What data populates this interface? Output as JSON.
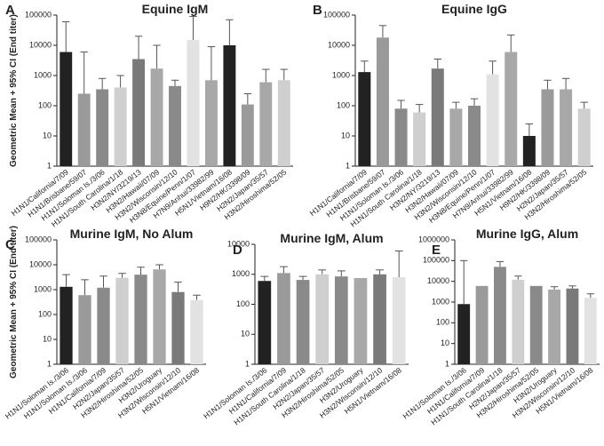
{
  "chart_data": [
    {
      "type": "bar",
      "panel": "A",
      "title": "Equine IgM",
      "ylabel": "Geometric Mean + 95% CI (End titer)",
      "log_scale": true,
      "categories": [
        "H1N1/California/7/09",
        "H1N1/Brisbane/59/07",
        "H1N1/Soloman Is./3/06",
        "H1N1/South Carolina/1/18",
        "H3N2/NY/3219/13",
        "H3N2/Hawaii/07/09",
        "H3N2/Wisconsin/12/10",
        "H3N8/Equine/Penn/1/07",
        "H7N9/Anhui/33982/99",
        "H5N1/Vietnam/16/08",
        "H9N2/HK/3398/09",
        "H2N2/Japan/35/57",
        "H3N2/Hiroshima/52/05"
      ],
      "values": [
        6000,
        250,
        350,
        400,
        3500,
        1700,
        450,
        15000,
        700,
        10000,
        110,
        600,
        700
      ],
      "upper": [
        60000,
        6000,
        800,
        1000,
        20000,
        10000,
        700,
        90000,
        9000,
        70000,
        250,
        1600,
        1600
      ],
      "colors": [
        "#222222",
        "#9a9a9a",
        "#8a8a8a",
        "#cfcfcf",
        "#7a7a7a",
        "#a8a8a8",
        "#8a8a8a",
        "#e2e2e2",
        "#a8a8a8",
        "#222222",
        "#9a9a9a",
        "#a8a8a8",
        "#cfcfcf"
      ],
      "ylim": [
        1,
        100000
      ],
      "yticks": [
        1,
        10,
        100,
        1000,
        10000,
        100000
      ]
    },
    {
      "type": "bar",
      "panel": "B",
      "title": "Equine IgG",
      "log_scale": true,
      "categories": [
        "H1N1/California/7/09",
        "H1N1/Brisbane/59/07",
        "H1N1/Soloman Is./3/06",
        "H1N1/South Carolina/1/18",
        "H3N2/NY/3219/13",
        "H3N2/Hawaii/07/09",
        "H3N2/Wisconsin/12/10",
        "H3N8/Equine/Penn/1/07",
        "H7N9/Anhui/33982/99",
        "H5N1/Vietnam/16/08",
        "H9N2/HK/3398/09",
        "H2N2/Japan/35/57",
        "H3N2/Hiroshima/52/05"
      ],
      "values": [
        1300,
        18000,
        80,
        60,
        1700,
        80,
        100,
        1100,
        6000,
        10,
        350,
        350,
        80
      ],
      "upper": [
        3000,
        45000,
        150,
        110,
        3500,
        130,
        170,
        3000,
        22000,
        25,
        700,
        800,
        130
      ],
      "colors": [
        "#222222",
        "#9a9a9a",
        "#8a8a8a",
        "#cfcfcf",
        "#7a7a7a",
        "#a8a8a8",
        "#8a8a8a",
        "#e2e2e2",
        "#a8a8a8",
        "#222222",
        "#9a9a9a",
        "#a8a8a8",
        "#cfcfcf"
      ],
      "ylim": [
        1,
        100000
      ],
      "yticks": [
        1,
        10,
        100,
        1000,
        10000,
        100000
      ]
    },
    {
      "type": "bar",
      "panel": "C",
      "title": "Murine IgM, No Alum",
      "ylabel": "Geometric Mean + 95% CI (End titer)",
      "log_scale": true,
      "categories": [
        "H1N1/Soloman Is./3/06",
        "H1N1/Soloman Is./3/06",
        "H1N1/California/7/09",
        "H2N2/Japan/35/57",
        "H3N2/Hiroshima/52/05",
        "H3N2/Uroguary",
        "H3N2/Wisconsin/12/10",
        "H5N1/Vietnam/16/08"
      ],
      "values": [
        1300,
        600,
        1200,
        3000,
        4000,
        6500,
        800,
        380
      ],
      "upper": [
        4000,
        2500,
        3500,
        4500,
        8000,
        10000,
        2000,
        600
      ],
      "colors": [
        "#222222",
        "#9a9a9a",
        "#8a8a8a",
        "#cfcfcf",
        "#8a8a8a",
        "#a8a8a8",
        "#7a7a7a",
        "#e2e2e2"
      ],
      "ylim": [
        1,
        100000
      ],
      "yticks": [
        1,
        10,
        100,
        1000,
        10000,
        100000
      ]
    },
    {
      "type": "bar",
      "panel": "D",
      "title": "Murine IgM, Alum",
      "log_scale": true,
      "categories": [
        "H1N1/Soloman Is./3/06",
        "H1N1/California/7/09",
        "H1N1/South Carolina/1/18",
        "H2N2/Japan/35/57",
        "H3N2/Hiroshima/52/05",
        "H3N2/Uroguary",
        "H3N2/Wisconsin/12/10",
        "H5N1/Vietnam/16/08"
      ],
      "values": [
        600,
        1100,
        650,
        1000,
        850,
        750,
        1000,
        800
      ],
      "upper": [
        850,
        1800,
        850,
        1400,
        1300,
        null,
        1400,
        6000
      ],
      "colors": [
        "#222222",
        "#9a9a9a",
        "#8a8a8a",
        "#cfcfcf",
        "#8a8a8a",
        "#a8a8a8",
        "#7a7a7a",
        "#e2e2e2"
      ],
      "ylim": [
        1,
        10000
      ],
      "yticks": [
        1,
        10,
        100,
        1000,
        10000
      ]
    },
    {
      "type": "bar",
      "panel": "E",
      "title": "Murine IgG, Alum",
      "log_scale": true,
      "categories": [
        "H1N1/Soloman Is./3/06",
        "H1N1/California/7/09",
        "H1N1/South Carolina/1/18",
        "H2N2/Japan/35/57",
        "H3N2/Hiroshima/52/05",
        "H3N2/Uroguary",
        "H3N2/Wisconsin/12/10",
        "H5N1/Vietnam/16/08"
      ],
      "values": [
        800,
        6000,
        50000,
        12000,
        6000,
        4000,
        4500,
        1600
      ],
      "upper": [
        100000,
        null,
        90000,
        18000,
        null,
        5500,
        6000,
        2500
      ],
      "colors": [
        "#222222",
        "#9a9a9a",
        "#8a8a8a",
        "#cfcfcf",
        "#8a8a8a",
        "#a8a8a8",
        "#7a7a7a",
        "#e2e2e2"
      ],
      "ylim": [
        1,
        1000000
      ],
      "yticks": [
        1,
        10,
        100,
        1000,
        10000,
        100000,
        1000000
      ]
    }
  ]
}
